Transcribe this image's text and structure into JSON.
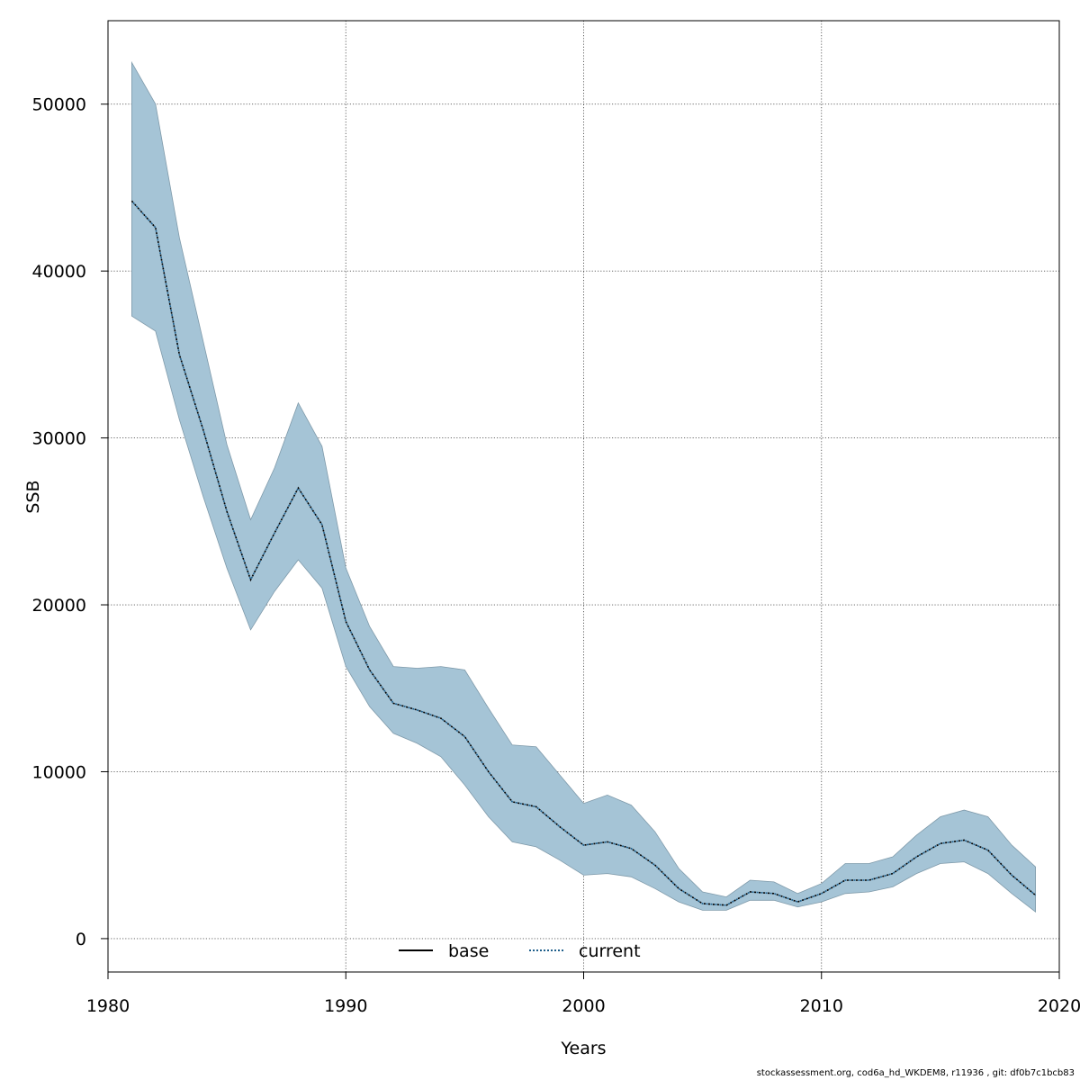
{
  "chart_data": {
    "type": "line",
    "title": "",
    "xlabel": "Years",
    "ylabel": "SSB",
    "xlim": [
      1980,
      2020
    ],
    "ylim": [
      -2000,
      55000
    ],
    "x_ticks": [
      1980,
      1990,
      2000,
      2010,
      2020
    ],
    "y_ticks": [
      0,
      10000,
      20000,
      30000,
      40000,
      50000
    ],
    "grid": true,
    "legend_position": "bottom-center",
    "legend": [
      {
        "label": "base",
        "style": "solid",
        "color": "#000000"
      },
      {
        "label": "current",
        "style": "dotted",
        "color": "#1f5f8b"
      }
    ],
    "band_color": "#a5c4d6",
    "band_edge_color": "#7f9aaa",
    "x": [
      1981,
      1982,
      1983,
      1984,
      1985,
      1986,
      1987,
      1988,
      1989,
      1990,
      1991,
      1992,
      1993,
      1994,
      1995,
      1996,
      1997,
      1998,
      1999,
      2000,
      2001,
      2002,
      2003,
      2004,
      2005,
      2006,
      2007,
      2008,
      2009,
      2010,
      2011,
      2012,
      2013,
      2014,
      2015,
      2016,
      2017,
      2018,
      2019
    ],
    "series": [
      {
        "name": "current",
        "values": [
          44200,
          42600,
          35000,
          30500,
          25600,
          21500,
          24300,
          27000,
          24800,
          19000,
          16100,
          14100,
          13700,
          13200,
          12100,
          10000,
          8200,
          7900,
          6700,
          5600,
          5800,
          5400,
          4400,
          3000,
          2100,
          2000,
          2800,
          2700,
          2200,
          2700,
          3500,
          3500,
          3900,
          4900,
          5700,
          5900,
          5300,
          3800,
          2600
        ]
      },
      {
        "name": "upper",
        "values": [
          52500,
          50000,
          42000,
          35800,
          29600,
          25100,
          28200,
          32100,
          29500,
          22200,
          18700,
          16300,
          16200,
          16300,
          16100,
          13800,
          11600,
          11500,
          9800,
          8100,
          8600,
          8000,
          6400,
          4200,
          2800,
          2500,
          3500,
          3400,
          2700,
          3300,
          4500,
          4500,
          4900,
          6200,
          7300,
          7700,
          7300,
          5600,
          4300
        ]
      },
      {
        "name": "lower",
        "values": [
          37300,
          36400,
          31100,
          26500,
          22200,
          18500,
          20800,
          22700,
          21000,
          16300,
          13900,
          12300,
          11700,
          10900,
          9200,
          7300,
          5800,
          5500,
          4700,
          3800,
          3900,
          3700,
          3000,
          2200,
          1700,
          1700,
          2300,
          2300,
          1900,
          2200,
          2700,
          2800,
          3100,
          3900,
          4500,
          4600,
          3900,
          2700,
          1600
        ]
      }
    ]
  },
  "footer_text": "stockassessment.org, cod6a_hd_WKDEM8, r11936 , git: df0b7c1bcb83"
}
